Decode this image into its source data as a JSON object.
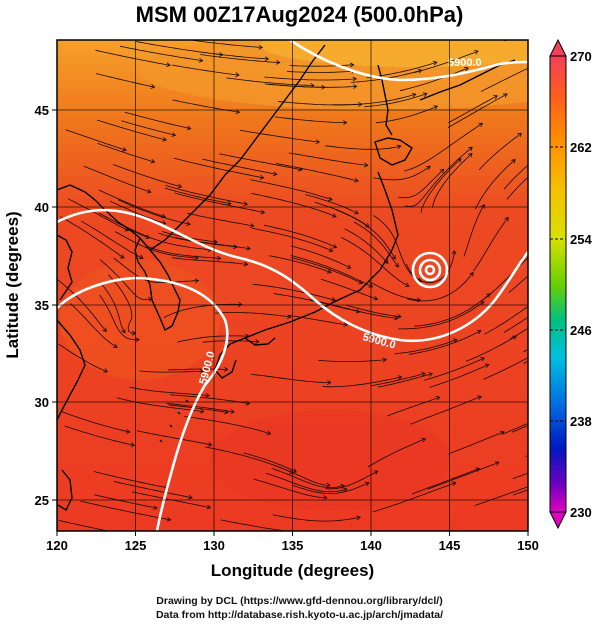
{
  "title": "MSM 00Z17Aug2024 (500.0hPa)",
  "x_axis": {
    "label": "Longitude (degrees)",
    "ticks": [
      "120",
      "125",
      "130",
      "135",
      "140",
      "145",
      "150"
    ]
  },
  "y_axis": {
    "label": "Latitude  (degrees)",
    "ticks": [
      "25",
      "30",
      "35",
      "40",
      "45"
    ]
  },
  "colorbar": {
    "ticks": [
      "270",
      "262",
      "254",
      "246",
      "238",
      "230"
    ],
    "colors": [
      "#f0405a",
      "#ff5a20",
      "#ff8c00",
      "#f5c400",
      "#d8e000",
      "#6ad000",
      "#00c080",
      "#00c0e0",
      "#0070e0",
      "#0018c0",
      "#7000c0",
      "#e000c0"
    ]
  },
  "contour_labels": [
    "5900.0",
    "5900.0",
    "5900.0"
  ],
  "footer": {
    "line1": "Drawing by DCL (https://www.gfd-dennou.org/library/dcl/)",
    "line2": "Data from http://database.rish.kyoto-u.ac.jp/arch/jmadata/"
  },
  "map_data": {
    "extent": {
      "lon": [
        120,
        150
      ],
      "lat": [
        22.4,
        47.6
      ]
    },
    "field_colors": {
      "main": "#ec3a22",
      "warm": "#f05a18",
      "north": "#f08a1c",
      "north_edge": "#f6a82a"
    }
  }
}
